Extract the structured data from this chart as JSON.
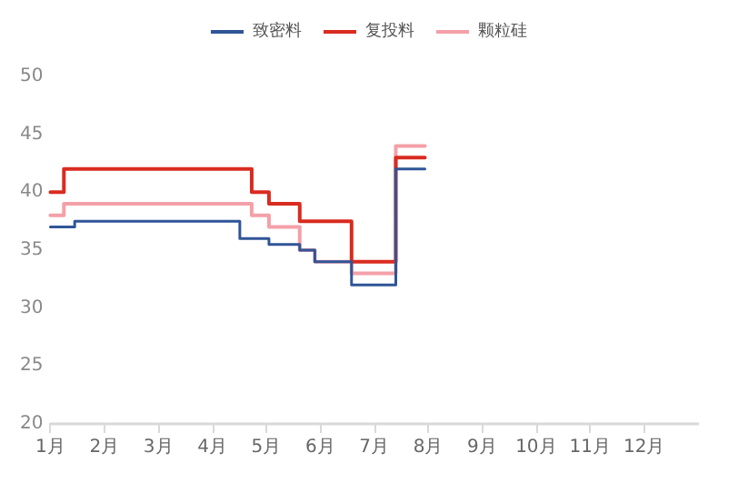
{
  "chart_data": {
    "type": "step",
    "legend": "top",
    "grid": false,
    "marker": "none",
    "line_style": "solid",
    "xlim": [
      1,
      13
    ],
    "xticks": [
      {
        "value": 1,
        "label": "1月"
      },
      {
        "value": 2,
        "label": "2月"
      },
      {
        "value": 3,
        "label": "3月"
      },
      {
        "value": 4,
        "label": "4月"
      },
      {
        "value": 5,
        "label": "5月"
      },
      {
        "value": 6,
        "label": "6月"
      },
      {
        "value": 7,
        "label": "7月"
      },
      {
        "value": 8,
        "label": "8月"
      },
      {
        "value": 9,
        "label": "9月"
      },
      {
        "value": 10,
        "label": "10月"
      },
      {
        "value": 11,
        "label": "11月"
      },
      {
        "value": 12,
        "label": "12月"
      }
    ],
    "ylim": [
      20,
      50
    ],
    "yticks": [
      20,
      25,
      30,
      35,
      40,
      45,
      50
    ],
    "series": [
      {
        "name": "致密料",
        "color": "#2f5597",
        "x": [
          1,
          1.45,
          4.51,
          5.05,
          5.62,
          5.9,
          6.58,
          7.4,
          7.94
        ],
        "values": [
          37,
          37.5,
          36,
          35.5,
          35,
          34,
          32,
          42,
          42
        ]
      },
      {
        "name": "复投料",
        "color": "#d92b20",
        "x": [
          1,
          1.25,
          4.73,
          5.05,
          5.62,
          6.58,
          7.4,
          7.94
        ],
        "values": [
          40,
          42,
          40,
          39,
          37.5,
          34,
          43,
          43
        ]
      },
      {
        "name": "颗粒硅",
        "color": "#f4a0a8",
        "x": [
          1,
          1.25,
          4.73,
          5.05,
          5.62,
          5.9,
          6.58,
          7.4,
          7.94
        ],
        "values": [
          38,
          39,
          38,
          37,
          35,
          34,
          33,
          44,
          44
        ]
      }
    ]
  }
}
